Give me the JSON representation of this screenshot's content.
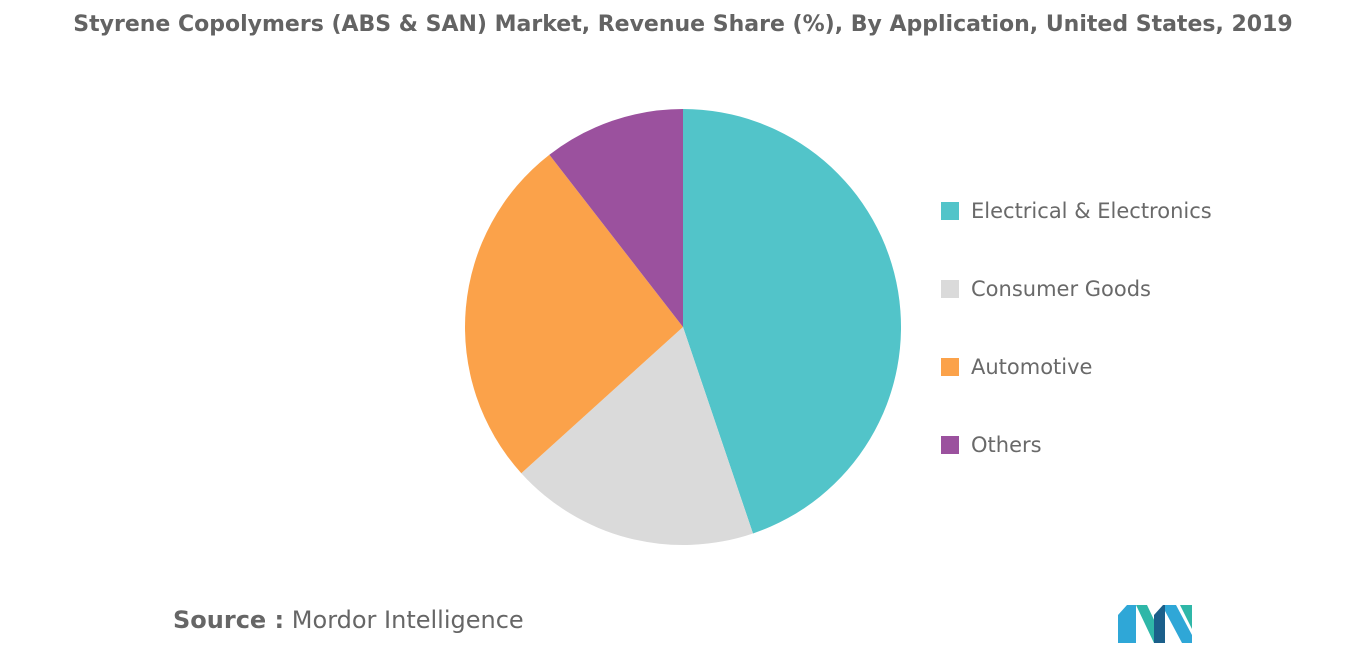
{
  "chart_data": {
    "type": "pie",
    "title": "Styrene Copolymers (ABS & SAN) Market, Revenue Share (%), By Application, United States, 2019",
    "categories": [
      "Electrical & Electronics",
      "Consumer Goods",
      "Automotive",
      "Others"
    ],
    "values": [
      44.8,
      18.5,
      26.2,
      10.5
    ],
    "colors": [
      "#52c4c9",
      "#dadada",
      "#fba24a",
      "#9b519e"
    ],
    "legend_position": "right"
  },
  "source": {
    "prefix": "Source :",
    "text": "Mordor Intelligence"
  },
  "logo": {
    "colors": [
      "#2fa7d7",
      "#2fb7a8",
      "#1b5f8a"
    ]
  }
}
